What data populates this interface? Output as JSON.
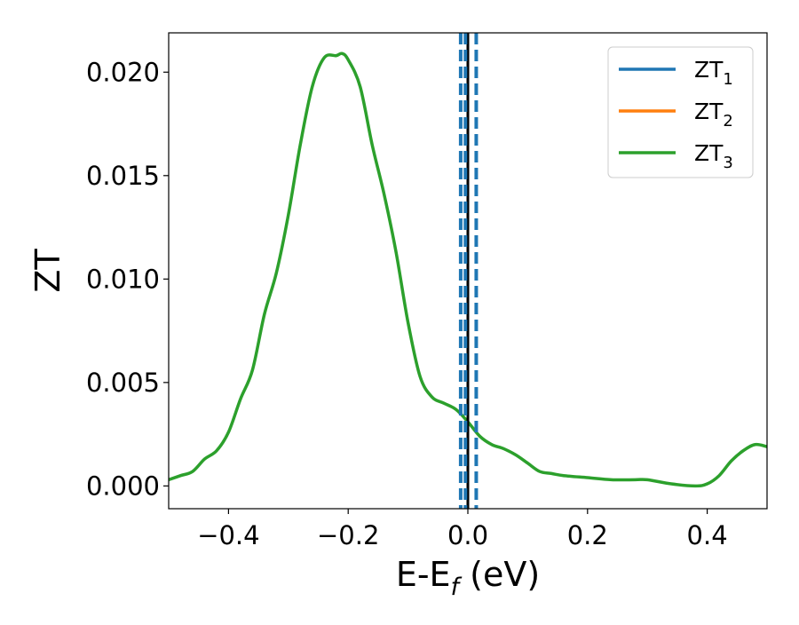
{
  "chart_data": {
    "type": "line",
    "title": "",
    "xlabel": "E-E",
    "xlabel_sub": "f",
    "xlabel_unit": " (eV)",
    "ylabel": "ZT",
    "xlim": [
      -0.5,
      0.5
    ],
    "ylim": [
      -0.0011,
      0.0219
    ],
    "xticks": [
      -0.4,
      -0.2,
      0.0,
      0.2,
      0.4
    ],
    "xtick_labels": [
      "−0.4",
      "−0.2",
      "0.0",
      "0.2",
      "0.4"
    ],
    "yticks": [
      0.0,
      0.005,
      0.01,
      0.015,
      0.02
    ],
    "ytick_labels": [
      "0.000",
      "0.005",
      "0.010",
      "0.015",
      "0.020"
    ],
    "grid": false,
    "legend_position": "top-right",
    "series": [
      {
        "name": "ZT",
        "subscript": "1",
        "color": "#1f77b4",
        "x": [],
        "y": []
      },
      {
        "name": "ZT",
        "subscript": "2",
        "color": "#ff7f0e",
        "x": [],
        "y": []
      },
      {
        "name": "ZT",
        "subscript": "3",
        "color": "#2ca02c",
        "x": [
          -0.5,
          -0.48,
          -0.46,
          -0.44,
          -0.42,
          -0.4,
          -0.38,
          -0.36,
          -0.34,
          -0.32,
          -0.3,
          -0.28,
          -0.26,
          -0.24,
          -0.22,
          -0.21,
          -0.2,
          -0.18,
          -0.16,
          -0.14,
          -0.12,
          -0.1,
          -0.08,
          -0.06,
          -0.04,
          -0.02,
          0.0,
          0.02,
          0.04,
          0.06,
          0.08,
          0.1,
          0.12,
          0.14,
          0.16,
          0.2,
          0.24,
          0.28,
          0.3,
          0.34,
          0.38,
          0.4,
          0.42,
          0.44,
          0.46,
          0.48,
          0.5
        ],
        "y": [
          0.0003,
          0.0005,
          0.0007,
          0.0013,
          0.0017,
          0.0026,
          0.0042,
          0.0056,
          0.0083,
          0.0103,
          0.0131,
          0.0165,
          0.0193,
          0.0207,
          0.0208,
          0.0209,
          0.0206,
          0.0193,
          0.0165,
          0.0141,
          0.0113,
          0.0079,
          0.0053,
          0.0043,
          0.004,
          0.0037,
          0.0031,
          0.0024,
          0.002,
          0.0018,
          0.0015,
          0.0011,
          0.0007,
          0.0006,
          0.0005,
          0.0004,
          0.0003,
          0.0003,
          0.0003,
          0.0001,
          0.0,
          0.0001,
          0.0005,
          0.0012,
          0.0017,
          0.002,
          0.0019
        ]
      }
    ],
    "vlines": [
      {
        "x": 0.0,
        "color": "#000000",
        "style": "solid"
      },
      {
        "x": -0.012,
        "color": "#1f77b4",
        "style": "dashed"
      },
      {
        "x": -0.004,
        "color": "#1f77b4",
        "style": "dashed"
      },
      {
        "x": 0.014,
        "color": "#1f77b4",
        "style": "dashed"
      }
    ]
  }
}
